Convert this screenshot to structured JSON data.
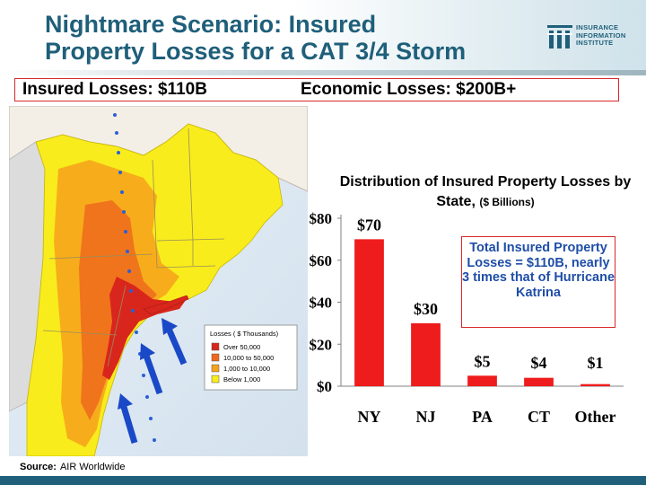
{
  "title": {
    "line1": "Nightmare Scenario: Insured",
    "line2": "Property Losses for a CAT 3/4 Storm"
  },
  "logo": {
    "line1": "INSURANCE",
    "line2": "INFORMATION",
    "line3": "INSTITUTE",
    "icon": "iii-logo-icon",
    "color": "#1f5f7a"
  },
  "summary": {
    "insured": "Insured Losses: $110B",
    "economic": "Economic Losses: $200B+"
  },
  "map": {
    "legend_title": "Losses ( $ Thousands)",
    "legend": [
      {
        "label": "Over 50,000",
        "color": "#d9261c"
      },
      {
        "label": "10,000 to 50,000",
        "color": "#ee6a1c"
      },
      {
        "label": "1,000 to 10,000",
        "color": "#f7a21b"
      },
      {
        "label": "Below 1,000",
        "color": "#f9ec1c"
      }
    ],
    "arrow_color": "#1a49c8",
    "track_color": "#2a5fd6"
  },
  "chart_title": {
    "main": "Distribution of Insured Property Losses by State,",
    "unit": "($ Billions)"
  },
  "chart_data": {
    "type": "bar",
    "title": "Distribution of Insured Property Losses by State, ($ Billions)",
    "categories": [
      "NY",
      "NJ",
      "PA",
      "CT",
      "Other"
    ],
    "values": [
      70,
      30,
      5,
      4,
      1
    ],
    "data_labels": [
      "$70",
      "$30",
      "$5",
      "$4",
      "$1"
    ],
    "yticks": [
      "$0",
      "$20",
      "$40",
      "$60",
      "$80"
    ],
    "ylim": [
      0,
      80
    ],
    "bar_color": "#ee1c1c",
    "grid": false
  },
  "callout": "Total Insured Property Losses = $110B, nearly 3 times that of Hurricane Katrina",
  "source": {
    "label": "Source:",
    "text": "AIR Worldwide"
  }
}
